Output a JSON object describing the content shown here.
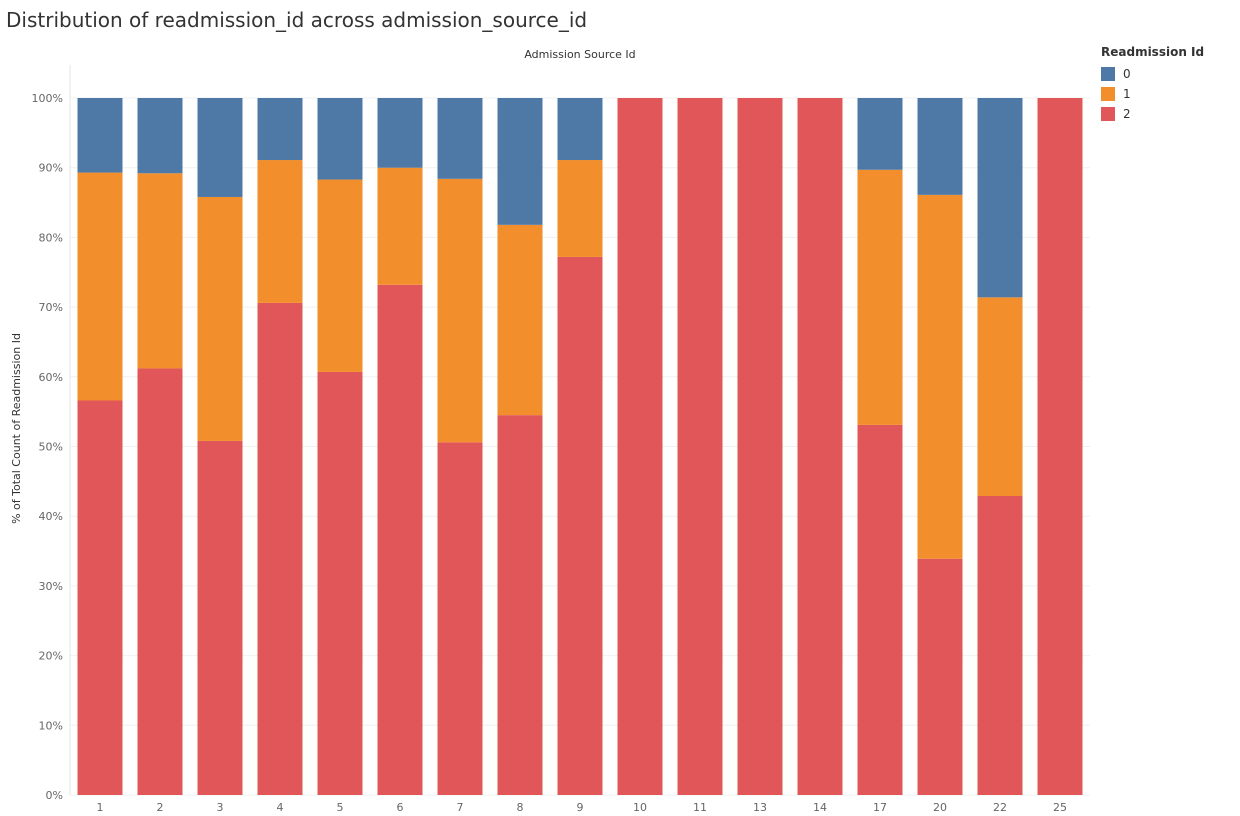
{
  "title": "Distribution of readmission_id across admission_source_id",
  "chart_data": {
    "type": "bar",
    "stacked": "percent",
    "column_header": "Admission Source Id",
    "ylabel": "% of Total Count of Readmission Id",
    "ylim": [
      0,
      100
    ],
    "y_ticks": [
      "0%",
      "10%",
      "20%",
      "30%",
      "40%",
      "50%",
      "60%",
      "70%",
      "80%",
      "90%",
      "100%"
    ],
    "categories": [
      "1",
      "2",
      "3",
      "4",
      "5",
      "6",
      "7",
      "8",
      "9",
      "10",
      "11",
      "13",
      "14",
      "17",
      "20",
      "22",
      "25"
    ],
    "series": [
      {
        "name": "2",
        "color": "#e15759",
        "values": [
          56.6,
          61.2,
          50.8,
          70.6,
          60.7,
          73.2,
          50.6,
          54.5,
          77.2,
          100,
          100,
          100,
          100,
          53.1,
          33.9,
          42.9,
          100
        ]
      },
      {
        "name": "1",
        "color": "#f28e2b",
        "values": [
          32.7,
          28.0,
          35.0,
          20.5,
          27.6,
          16.8,
          37.8,
          27.3,
          13.9,
          0,
          0,
          0,
          0,
          36.6,
          52.2,
          28.5,
          0
        ]
      },
      {
        "name": "0",
        "color": "#4e79a7",
        "values": [
          10.7,
          10.8,
          14.2,
          8.9,
          11.7,
          10.0,
          11.6,
          18.2,
          8.9,
          0,
          0,
          0,
          0,
          10.3,
          13.9,
          28.6,
          0
        ]
      }
    ],
    "legend": {
      "title": "Readmission Id",
      "position": "right",
      "items": [
        {
          "label": "0",
          "color": "#4e79a7"
        },
        {
          "label": "1",
          "color": "#f28e2b"
        },
        {
          "label": "2",
          "color": "#e15759"
        }
      ]
    },
    "grid": true
  }
}
